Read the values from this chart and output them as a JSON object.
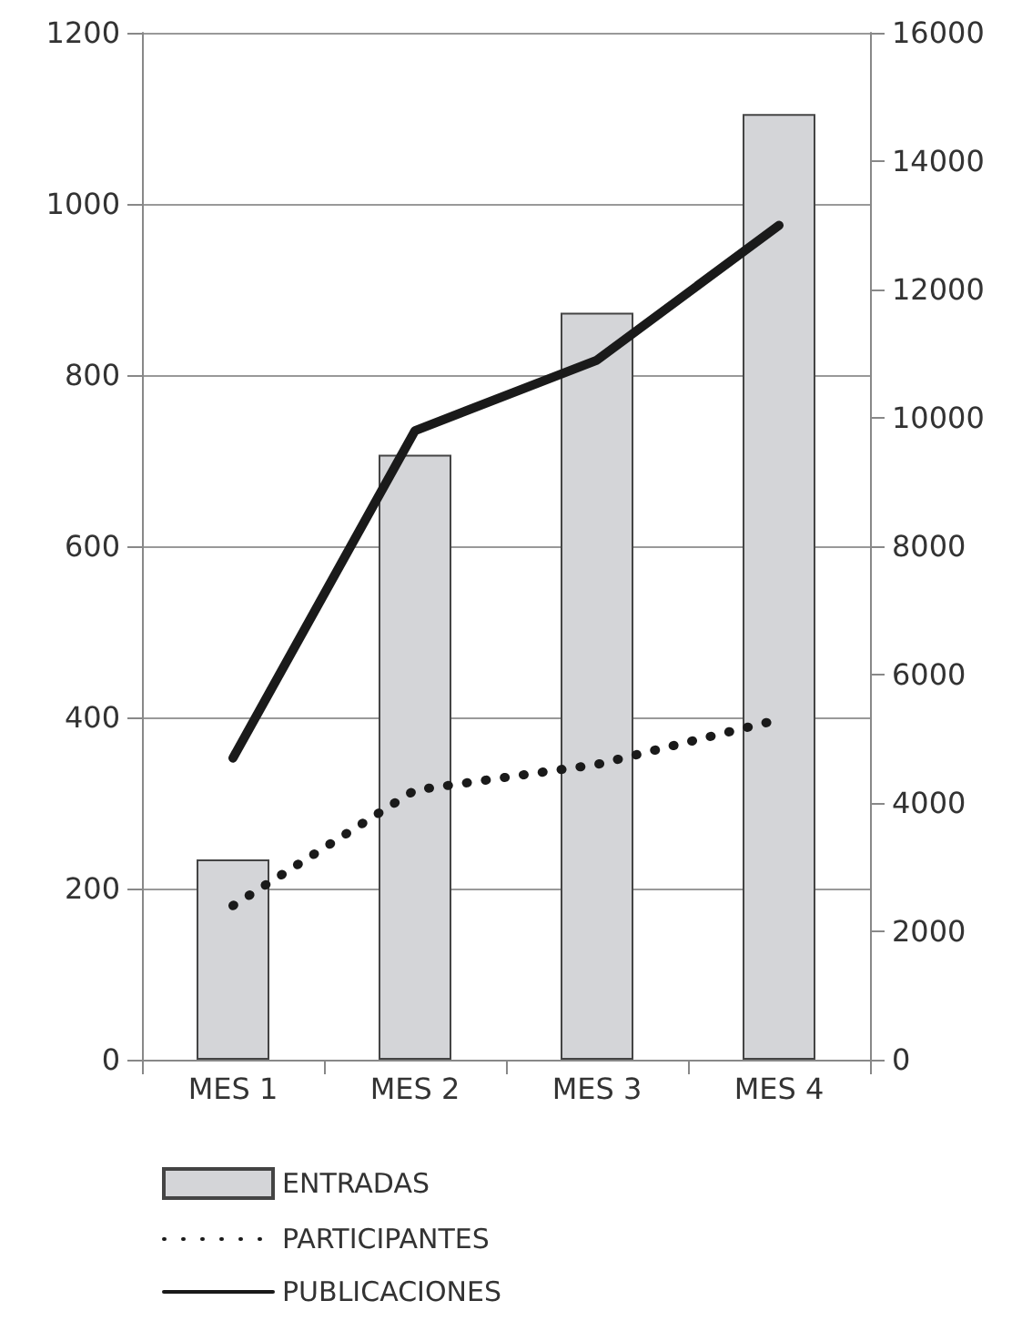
{
  "chart_data": {
    "type": "bar",
    "categories": [
      "MES 1",
      "MES 2",
      "MES 3",
      "MES 4"
    ],
    "series": [
      {
        "name": "ENTRADAS",
        "color": "#d4d5d8",
        "values": [
          234,
          707,
          873,
          1105
        ]
      },
      {
        "name": "PARTICIPANTES",
        "type": "line",
        "axis": "y2",
        "color": "#1a1a1a",
        "line_style": "dotted",
        "values": [
          2400,
          4200,
          4600,
          5300
        ]
      },
      {
        "name": "PUBLICACIONES",
        "type": "line",
        "axis": "y2",
        "color": "#1a1a1a",
        "line_style": "solid",
        "values": [
          4700,
          9800,
          10900,
          13000
        ]
      }
    ],
    "ylim": [
      0,
      1200
    ],
    "yticks": [
      0,
      200,
      400,
      600,
      800,
      1000,
      1200
    ],
    "y2lim": [
      0,
      16000
    ],
    "y2ticks": [
      0,
      2000,
      4000,
      6000,
      8000,
      10000,
      12000,
      14000,
      16000
    ],
    "grid": "y",
    "legend": "bottom",
    "marker": "none"
  }
}
